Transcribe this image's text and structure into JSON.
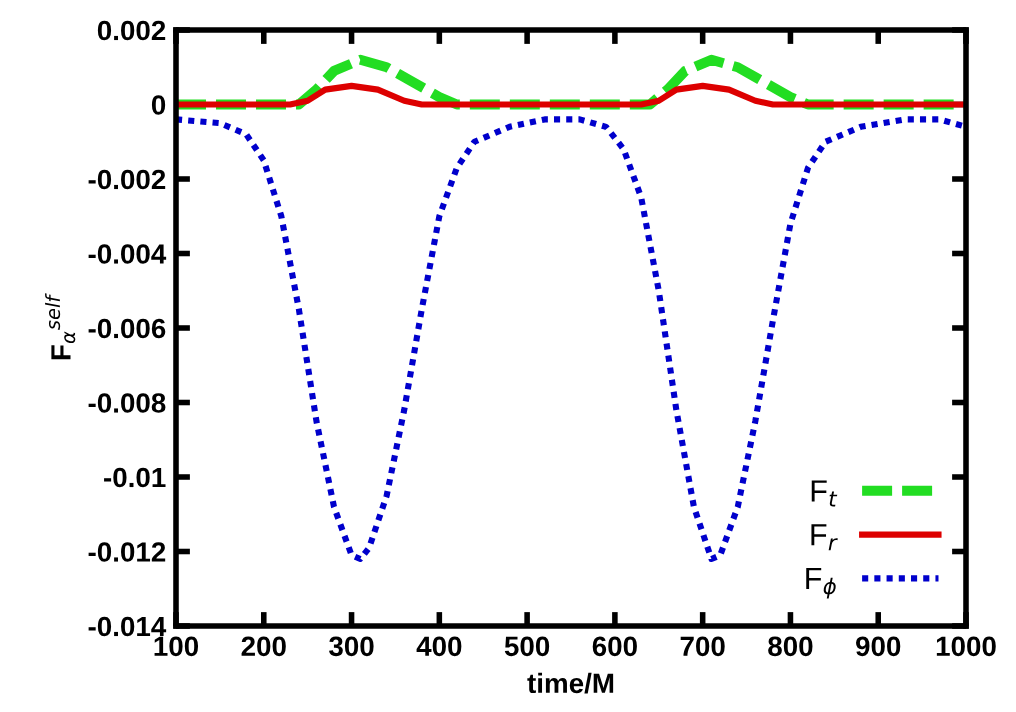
{
  "chart_data": {
    "type": "line",
    "xlabel": "time/M",
    "ylabel": "F$_{α}$$^{self}$",
    "xlim": [
      100,
      1000
    ],
    "xticks": [
      100,
      200,
      300,
      400,
      500,
      600,
      700,
      800,
      900,
      1000
    ],
    "ylim": [
      -0.014,
      0.002
    ],
    "yticks": [
      {
        "value": -0.014,
        "label": "-0.014"
      },
      {
        "value": -0.012,
        "label": "-0.012"
      },
      {
        "value": -0.01,
        "label": "-0.01"
      },
      {
        "value": -0.008,
        "label": "-0.008"
      },
      {
        "value": -0.006,
        "label": "-0.006"
      },
      {
        "value": -0.004,
        "label": "-0.004"
      },
      {
        "value": -0.002,
        "label": "-0.002"
      },
      {
        "value": 0,
        "label": "0"
      },
      {
        "value": 0.002,
        "label": "0.002"
      }
    ],
    "grid": false,
    "legend": "bottom right",
    "series": [
      {
        "name": "F$_{t}$",
        "color": "#22dd22",
        "line_style": "dashed",
        "x": [
          100,
          240,
          260,
          280,
          310,
          340,
          370,
          400,
          420,
          640,
          660,
          680,
          710,
          740,
          770,
          800,
          820,
          1000
        ],
        "values": [
          0,
          0,
          0.0004,
          0.0009,
          0.0012,
          0.001,
          0.0006,
          0.0002,
          0,
          0,
          0.0004,
          0.0009,
          0.0012,
          0.001,
          0.0006,
          0.0002,
          0,
          0
        ]
      },
      {
        "name": "F$_{r}$",
        "color": "#dd0000",
        "line_style": "solid",
        "x": [
          100,
          230,
          250,
          270,
          300,
          330,
          360,
          380,
          630,
          650,
          670,
          700,
          730,
          760,
          780,
          1000
        ],
        "values": [
          0,
          0,
          0.0001,
          0.0004,
          0.0005,
          0.0004,
          0.0001,
          0,
          0,
          0.0001,
          0.0004,
          0.0005,
          0.0004,
          0.0001,
          0,
          0
        ]
      },
      {
        "name": "F$_{ϕ}$",
        "color": "#0000cc",
        "line_style": "dotted",
        "x": [
          100,
          150,
          180,
          200,
          220,
          240,
          260,
          280,
          300,
          310,
          320,
          340,
          360,
          380,
          400,
          420,
          440,
          480,
          520,
          560,
          590,
          610,
          630,
          650,
          670,
          690,
          710,
          720,
          740,
          760,
          780,
          800,
          820,
          840,
          880,
          930,
          970,
          1000
        ],
        "values": [
          -0.0004,
          -0.0005,
          -0.0008,
          -0.0015,
          -0.003,
          -0.0055,
          -0.0085,
          -0.0108,
          -0.0121,
          -0.0122,
          -0.0119,
          -0.0105,
          -0.0082,
          -0.0055,
          -0.003,
          -0.0017,
          -0.001,
          -0.0006,
          -0.0004,
          -0.0004,
          -0.0006,
          -0.0012,
          -0.0025,
          -0.005,
          -0.0082,
          -0.0108,
          -0.0122,
          -0.0121,
          -0.0108,
          -0.0085,
          -0.0058,
          -0.0032,
          -0.0017,
          -0.001,
          -0.0006,
          -0.0004,
          -0.0004,
          -0.0006
        ]
      }
    ]
  }
}
